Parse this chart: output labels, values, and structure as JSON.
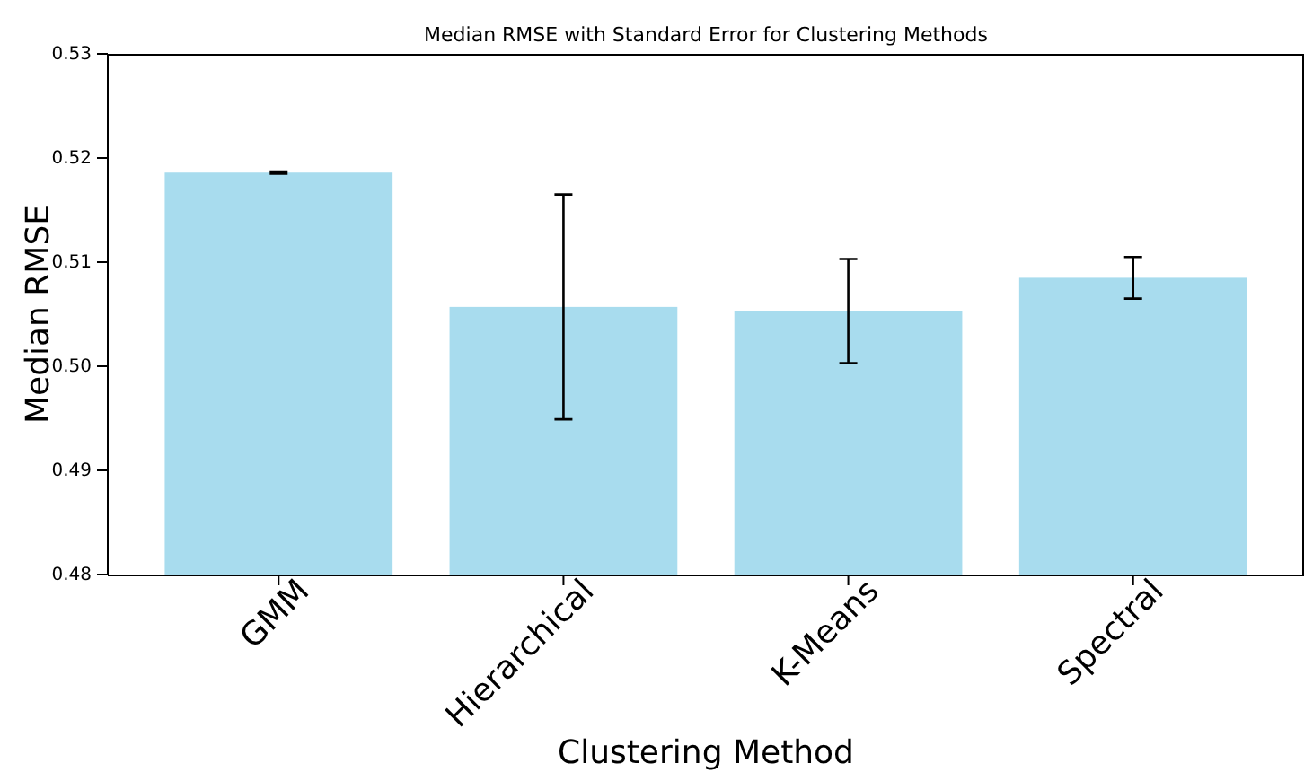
{
  "chart_data": {
    "type": "bar",
    "title": "Median RMSE with Standard Error for Clustering Methods",
    "xlabel": "Clustering Method",
    "ylabel": "Median RMSE",
    "categories": [
      "GMM",
      "Hierarchical",
      "K-Means",
      "Spectral"
    ],
    "values": [
      0.5186,
      0.5057,
      0.5053,
      0.5085
    ],
    "errors": [
      0.0001,
      0.0108,
      0.005,
      0.002
    ],
    "color": "#a8dcee",
    "ylim": [
      0.48,
      0.53
    ],
    "yticks": [
      0.48,
      0.49,
      {
        "value": 0.5,
        "label": "0.50"
      },
      0.51,
      0.52,
      0.53
    ],
    "grid": false
  }
}
